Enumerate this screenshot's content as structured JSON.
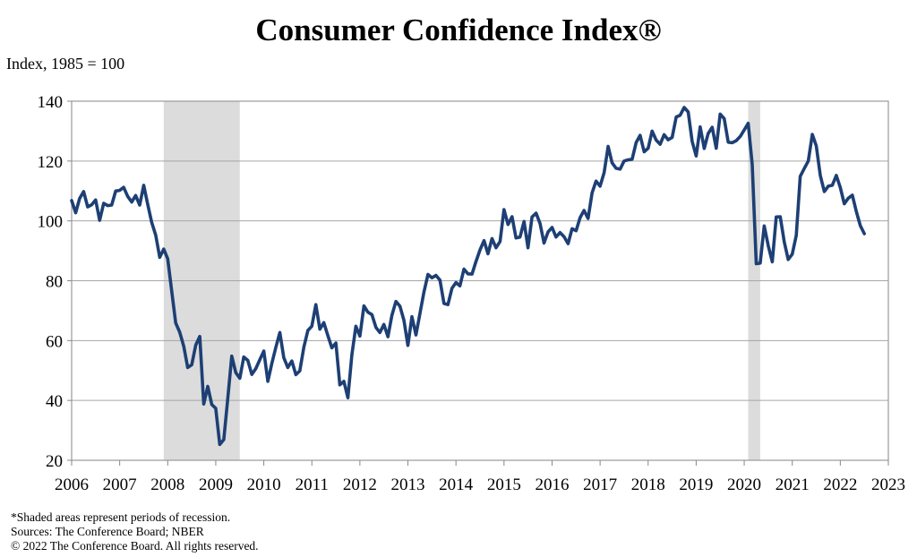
{
  "chart_data": {
    "type": "line",
    "title": "Consumer Confidence Index®",
    "ylabel": "Index, 1985 = 100",
    "xlabel": "",
    "frequency": "monthly",
    "ylim": [
      20,
      140
    ],
    "xlim": [
      2006,
      2023
    ],
    "yticks": [
      "20",
      "40",
      "60",
      "80",
      "100",
      "120",
      "140"
    ],
    "xticks": [
      "2006",
      "2007",
      "2008",
      "2009",
      "2010",
      "2011",
      "2012",
      "2013",
      "2014",
      "2015",
      "2016",
      "2017",
      "2018",
      "2019",
      "2020",
      "2021",
      "2022",
      "2023"
    ],
    "grid": "horizontal",
    "line_color": "#1d3f74",
    "recession_color": "#dcdcdc",
    "recessions": [
      {
        "start": "2007-12",
        "end": "2009-06"
      },
      {
        "start": "2020-02",
        "end": "2020-04"
      }
    ],
    "values_by_year": {
      "2006": [
        106.8,
        102.7,
        107.5,
        109.8,
        104.7,
        105.4,
        107.0,
        100.2,
        105.9,
        105.1,
        105.3,
        110.0
      ],
      "2007": [
        110.2,
        111.2,
        108.2,
        106.3,
        108.5,
        105.3,
        111.9,
        105.6,
        99.5,
        95.2,
        87.8,
        90.6
      ],
      "2008": [
        87.3,
        76.4,
        65.9,
        62.8,
        58.1,
        51.0,
        51.9,
        58.5,
        61.4,
        38.8,
        44.7,
        38.6
      ],
      "2009": [
        37.4,
        25.3,
        26.9,
        40.8,
        54.8,
        49.3,
        47.4,
        54.5,
        53.4,
        48.7,
        50.6,
        53.6
      ],
      "2010": [
        56.5,
        46.4,
        52.3,
        57.7,
        62.7,
        54.3,
        51.0,
        53.2,
        48.6,
        49.9,
        57.8,
        63.4
      ],
      "2011": [
        64.8,
        72.0,
        63.8,
        66.0,
        61.7,
        57.6,
        59.2,
        45.2,
        46.4,
        40.9,
        55.2,
        64.8
      ],
      "2012": [
        61.5,
        71.6,
        69.5,
        68.7,
        64.4,
        62.7,
        65.4,
        61.3,
        68.4,
        73.1,
        71.5,
        66.7
      ],
      "2013": [
        58.4,
        68.0,
        61.9,
        69.0,
        76.2,
        82.1,
        81.0,
        81.8,
        80.2,
        72.4,
        72.0,
        77.5
      ],
      "2014": [
        79.4,
        78.3,
        83.9,
        82.3,
        82.2,
        86.4,
        90.3,
        93.4,
        89.0,
        94.1,
        91.0,
        93.1
      ],
      "2015": [
        103.8,
        98.8,
        101.4,
        94.3,
        94.6,
        99.8,
        91.0,
        101.3,
        102.6,
        99.1,
        92.6,
        96.3
      ],
      "2016": [
        97.8,
        94.6,
        96.1,
        94.7,
        92.4,
        97.4,
        96.7,
        101.1,
        103.5,
        100.8,
        109.4,
        113.3
      ],
      "2017": [
        111.6,
        116.1,
        124.9,
        119.4,
        117.6,
        117.3,
        120.0,
        120.4,
        120.6,
        126.2,
        128.6,
        123.1
      ],
      "2018": [
        124.3,
        130.0,
        127.0,
        125.6,
        128.8,
        127.1,
        127.9,
        134.7,
        135.3,
        137.9,
        136.4,
        126.6
      ],
      "2019": [
        121.7,
        131.4,
        124.2,
        129.2,
        131.3,
        124.3,
        135.7,
        134.2,
        126.3,
        126.1,
        126.8,
        128.2
      ],
      "2020": [
        130.4,
        132.6,
        118.8,
        85.7,
        85.9,
        98.3,
        91.7,
        86.3,
        101.3,
        101.4,
        92.9,
        87.1
      ],
      "2021": [
        88.9,
        95.2,
        114.9,
        117.5,
        120.0,
        128.9,
        125.1,
        115.2,
        109.8,
        111.6,
        111.9,
        115.2
      ],
      "2022": [
        111.1,
        105.7,
        107.6,
        108.6,
        103.2,
        98.4,
        95.7
      ]
    }
  },
  "footnotes": {
    "recession_note": "*Shaded areas represent periods of recession.",
    "sources": "Sources: The Conference Board; NBER",
    "copyright": "© 2022 The Conference Board. All rights reserved."
  }
}
